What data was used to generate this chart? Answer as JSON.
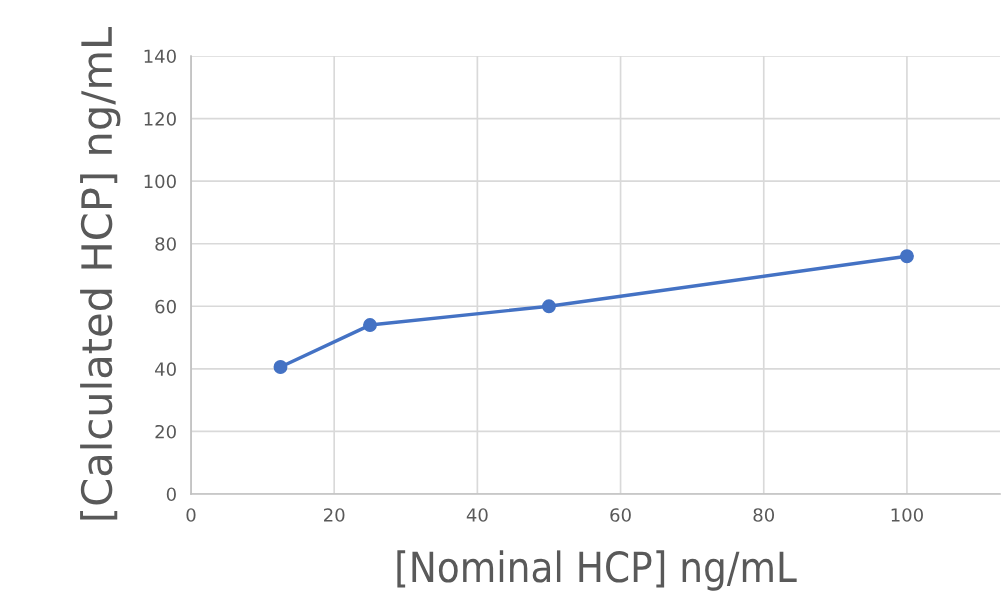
{
  "chart_data": {
    "type": "line",
    "xlabel": "[Nominal HCP] ng/mL",
    "ylabel": "[Calculated HCP] ng/mL",
    "x": [
      12.5,
      25,
      50,
      100
    ],
    "series": [
      {
        "color": "#4472c4",
        "values": [
          40.6,
          54,
          60,
          76
        ]
      }
    ],
    "xlim": [
      0,
      113
    ],
    "xticks": [
      0,
      20,
      40,
      60,
      80,
      100
    ],
    "ylim": [
      0,
      140
    ],
    "yticks": [
      0,
      20,
      40,
      60,
      80,
      100,
      120,
      140
    ],
    "grid": true,
    "marker": "circle",
    "line_style": "solid"
  }
}
